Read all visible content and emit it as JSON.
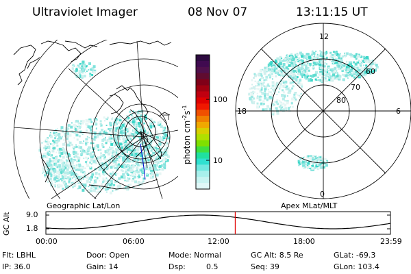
{
  "header": {
    "title": "Ultraviolet Imager",
    "date": "08 Nov 07",
    "time": "13:11:15 UT"
  },
  "left_panel": {
    "label": "Geographic Lat/Lon"
  },
  "right_panel": {
    "label": "Apex MLat/MLT",
    "mlt_labels": [
      "12",
      "18",
      "6",
      "0"
    ],
    "mlat_labels": [
      "60",
      "70",
      "80"
    ]
  },
  "colorbar": {
    "unit": "photon cm",
    "unit_exp1": "-2",
    "unit_mid": "s",
    "unit_exp2": "-1",
    "ticks": [
      "100",
      "10"
    ],
    "colors": [
      "#2d0a40",
      "#400a50",
      "#50104c",
      "#600c30",
      "#800018",
      "#a00010",
      "#c00010",
      "#e00000",
      "#f01800",
      "#f05000",
      "#f08000",
      "#f0a800",
      "#d8d000",
      "#b0e000",
      "#80e000",
      "#40e040",
      "#20e0a0",
      "#30e0d0",
      "#70e8e0",
      "#a8f0ec",
      "#c8f4f2",
      "#e0f8f8"
    ]
  },
  "altitude_plot": {
    "ylabel": "GC Alt",
    "yticks": [
      "9.0",
      "1.8"
    ],
    "xticks": [
      "00:00",
      "06:00",
      "12:00",
      "18:00",
      "23:59"
    ],
    "current_time_hours": 13.19,
    "current_marker_color": "#e00000"
  },
  "info": {
    "flt": "Flt: LBHL",
    "ip": "IP: 36.0",
    "door": "Door: Open",
    "gain": "Gain: 14",
    "mode": "Mode: Normal",
    "dsp_label": "Dsp:",
    "dsp_value": "0.5",
    "gc_alt": "GC Alt: 8.5 Re",
    "seq": "Seq: 39",
    "glat": "GLat: -69.3",
    "glon": "GLon: 103.4"
  }
}
